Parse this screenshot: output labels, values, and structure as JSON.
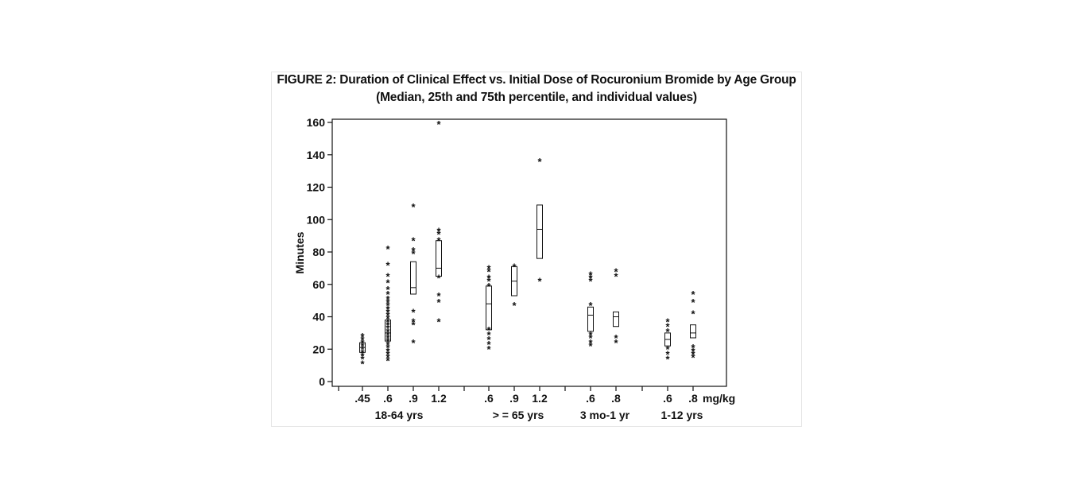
{
  "chart_data": {
    "type": "box",
    "title": "FIGURE 2: Duration of Clinical Effect vs. Initial Dose of Rocuronium Bromide by Age Group",
    "subtitle": "(Median, 25th and 75th percentile, and individual values)",
    "ylabel": "Minutes",
    "ylim": [
      0,
      160
    ],
    "yticks": [
      0,
      20,
      40,
      60,
      80,
      100,
      120,
      140,
      160
    ],
    "unit_label": "mg/kg",
    "groups": [
      {
        "label": "18-64 yrs",
        "doses": [
          ".45",
          ".6",
          ".9",
          "1.2"
        ]
      },
      {
        "label": "> = 65 yrs",
        "doses": [
          ".6",
          ".9",
          "1.2"
        ]
      },
      {
        "label": "3 mo-1 yr",
        "doses": [
          ".6",
          ".8"
        ]
      },
      {
        "label": "1-12 yrs",
        "doses": [
          ".6",
          ".8"
        ]
      }
    ],
    "series": [
      {
        "group": "18-64 yrs",
        "dose": ".45",
        "q1": 18,
        "median": 21,
        "q3": 24,
        "points": [
          12,
          15,
          17,
          19,
          21,
          23,
          25,
          27,
          29
        ]
      },
      {
        "group": "18-64 yrs",
        "dose": ".6",
        "q1": 25,
        "median": 30,
        "q3": 38,
        "points": [
          14,
          16,
          18,
          20,
          22,
          24,
          26,
          28,
          30,
          32,
          34,
          36,
          38,
          40,
          42,
          44,
          46,
          48,
          50,
          52,
          55,
          58,
          62,
          66,
          73,
          83
        ]
      },
      {
        "group": "18-64 yrs",
        "dose": ".9",
        "q1": 54,
        "median": 58,
        "q3": 74,
        "points": [
          25,
          36,
          38,
          44,
          80,
          82,
          88,
          109
        ]
      },
      {
        "group": "18-64 yrs",
        "dose": "1.2",
        "q1": 65,
        "median": 70,
        "q3": 87,
        "points": [
          38,
          50,
          54,
          65,
          88,
          92,
          94,
          160
        ]
      },
      {
        "group": "> = 65 yrs",
        "dose": ".6",
        "q1": 32,
        "median": 48,
        "q3": 59,
        "points": [
          21,
          24,
          27,
          30,
          33,
          60,
          63,
          65,
          69,
          71
        ]
      },
      {
        "group": "> = 65 yrs",
        "dose": ".9",
        "q1": 53,
        "median": 62,
        "q3": 71,
        "points": [
          48,
          72
        ]
      },
      {
        "group": "> = 65 yrs",
        "dose": "1.2",
        "q1": 76,
        "median": 94,
        "q3": 109,
        "points": [
          63,
          137
        ]
      },
      {
        "group": "3 mo-1 yr",
        "dose": ".6",
        "q1": 31,
        "median": 41,
        "q3": 46,
        "points": [
          23,
          25,
          28,
          30,
          48,
          63,
          65,
          67
        ]
      },
      {
        "group": "3 mo-1 yr",
        "dose": ".8",
        "q1": 34,
        "median": 40,
        "q3": 43,
        "points": [
          25,
          28,
          66,
          69
        ]
      },
      {
        "group": "1-12 yrs",
        "dose": ".6",
        "q1": 22,
        "median": 26,
        "q3": 30,
        "points": [
          15,
          18,
          21,
          32,
          35,
          38
        ]
      },
      {
        "group": "1-12 yrs",
        "dose": ".8",
        "q1": 27,
        "median": 30,
        "q3": 35,
        "points": [
          16,
          18,
          20,
          22,
          43,
          50,
          55
        ]
      }
    ]
  }
}
